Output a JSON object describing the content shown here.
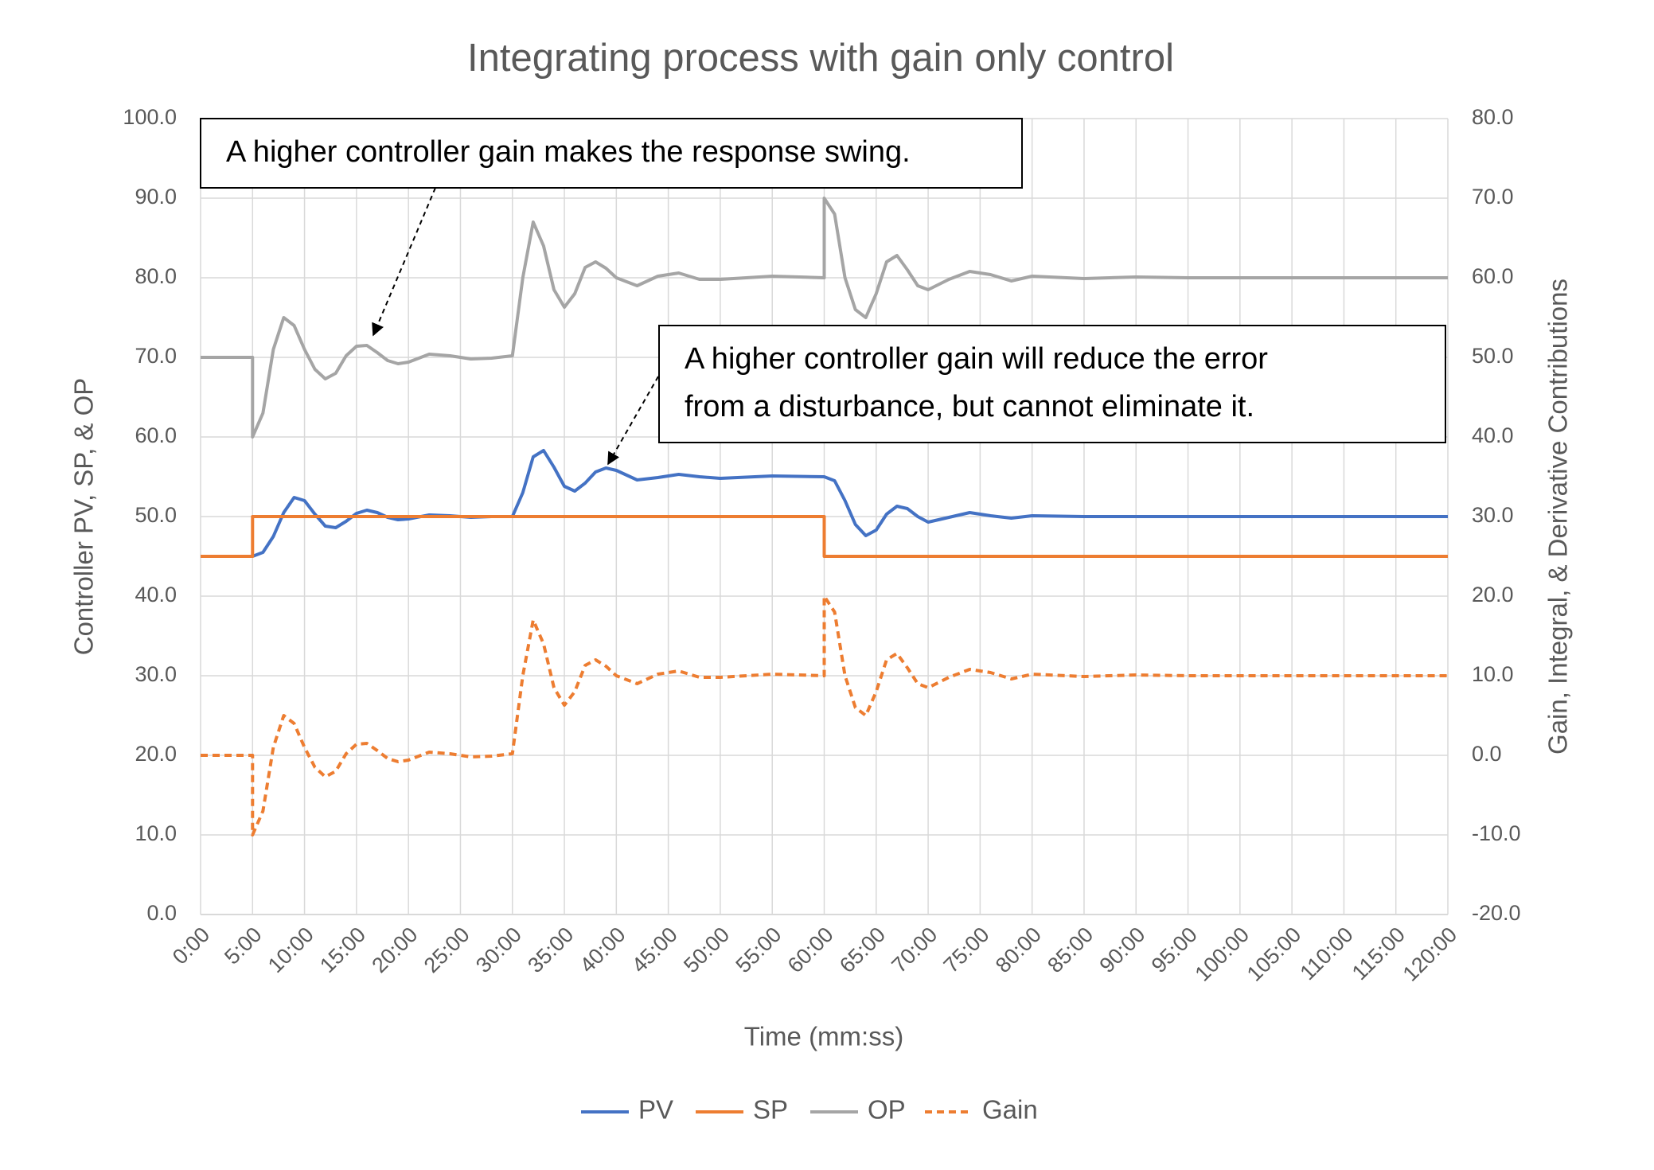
{
  "chart_data": {
    "type": "line",
    "title": "Integrating process with gain only control",
    "x_label": "Time (mm:ss)",
    "y_label": "Controller PV, SP, & OP",
    "y2_label": "Gain, Integral, & Derivative Contributions",
    "grid": true,
    "legend": "bottom",
    "xlim": [
      0,
      120
    ],
    "xticks": [
      {
        "value": 0,
        "label": "0:00"
      },
      {
        "value": 5,
        "label": "5:00"
      },
      {
        "value": 10,
        "label": "10:00"
      },
      {
        "value": 15,
        "label": "15:00"
      },
      {
        "value": 20,
        "label": "20:00"
      },
      {
        "value": 25,
        "label": "25:00"
      },
      {
        "value": 30,
        "label": "30:00"
      },
      {
        "value": 35,
        "label": "35:00"
      },
      {
        "value": 40,
        "label": "40:00"
      },
      {
        "value": 45,
        "label": "45:00"
      },
      {
        "value": 50,
        "label": "50:00"
      },
      {
        "value": 55,
        "label": "55:00"
      },
      {
        "value": 60,
        "label": "60:00"
      },
      {
        "value": 65,
        "label": "65:00"
      },
      {
        "value": 70,
        "label": "70:00"
      },
      {
        "value": 75,
        "label": "75:00"
      },
      {
        "value": 80,
        "label": "80:00"
      },
      {
        "value": 85,
        "label": "85:00"
      },
      {
        "value": 90,
        "label": "90:00"
      },
      {
        "value": 95,
        "label": "95:00"
      },
      {
        "value": 100,
        "label": "100:00"
      },
      {
        "value": 105,
        "label": "105:00"
      },
      {
        "value": 110,
        "label": "110:00"
      },
      {
        "value": 115,
        "label": "115:00"
      },
      {
        "value": 120,
        "label": "120:00"
      }
    ],
    "ylim": [
      0,
      100
    ],
    "yticks": [
      {
        "value": 0,
        "label": "0.0"
      },
      {
        "value": 10,
        "label": "10.0"
      },
      {
        "value": 20,
        "label": "20.0"
      },
      {
        "value": 30,
        "label": "30.0"
      },
      {
        "value": 40,
        "label": "40.0"
      },
      {
        "value": 50,
        "label": "50.0"
      },
      {
        "value": 60,
        "label": "60.0"
      },
      {
        "value": 70,
        "label": "70.0"
      },
      {
        "value": 80,
        "label": "80.0"
      },
      {
        "value": 90,
        "label": "90.0"
      },
      {
        "value": 100,
        "label": "100.0"
      }
    ],
    "y2lim": [
      -20,
      80
    ],
    "y2ticks": [
      {
        "value": -20,
        "label": "-20.0"
      },
      {
        "value": -10,
        "label": "-10.0"
      },
      {
        "value": 0,
        "label": "0.0"
      },
      {
        "value": 10,
        "label": "10.0"
      },
      {
        "value": 20,
        "label": "20.0"
      },
      {
        "value": 30,
        "label": "30.0"
      },
      {
        "value": 40,
        "label": "40.0"
      },
      {
        "value": 50,
        "label": "50.0"
      },
      {
        "value": 60,
        "label": "60.0"
      },
      {
        "value": 70,
        "label": "70.0"
      },
      {
        "value": 80,
        "label": "80.0"
      }
    ],
    "x": [
      0,
      5,
      5,
      6,
      7,
      8,
      9,
      10,
      11,
      12,
      13,
      14,
      15,
      16,
      17,
      18,
      19,
      20,
      22,
      24,
      26,
      28,
      30,
      31,
      32,
      33,
      34,
      35,
      36,
      37,
      38,
      39,
      40,
      42,
      44,
      46,
      48,
      50,
      55,
      60,
      60,
      61,
      62,
      63,
      64,
      65,
      66,
      67,
      68,
      69,
      70,
      72,
      74,
      76,
      78,
      80,
      85,
      90,
      95,
      100,
      105,
      110,
      115,
      120
    ],
    "series": [
      {
        "name": "PV",
        "color": "#4472c4",
        "line_style": "solid",
        "values": [
          45,
          45,
          45,
          45.5,
          47.5,
          50.5,
          52.4,
          52,
          50.3,
          48.8,
          48.6,
          49.4,
          50.4,
          50.8,
          50.5,
          49.9,
          49.6,
          49.7,
          50.2,
          50.1,
          49.9,
          50,
          50,
          53,
          57.5,
          58.3,
          56.2,
          53.8,
          53.2,
          54.2,
          55.6,
          56.1,
          55.8,
          54.6,
          54.9,
          55.3,
          55,
          54.8,
          55.1,
          55,
          55,
          54.5,
          52,
          49,
          47.6,
          48.3,
          50.3,
          51.3,
          51,
          50,
          49.3,
          49.9,
          50.5,
          50.1,
          49.8,
          50.1,
          50,
          50,
          50,
          50,
          50,
          50,
          50,
          50
        ]
      },
      {
        "name": "SP",
        "color": "#ed7d31",
        "line_style": "solid",
        "values": [
          45,
          45,
          50,
          50,
          50,
          50,
          50,
          50,
          50,
          50,
          50,
          50,
          50,
          50,
          50,
          50,
          50,
          50,
          50,
          50,
          50,
          50,
          50,
          50,
          50,
          50,
          50,
          50,
          50,
          50,
          50,
          50,
          50,
          50,
          50,
          50,
          50,
          50,
          50,
          50,
          45,
          45,
          45,
          45,
          45,
          45,
          45,
          45,
          45,
          45,
          45,
          45,
          45,
          45,
          45,
          45,
          45,
          45,
          45,
          45,
          45,
          45,
          45,
          45
        ]
      },
      {
        "name": "OP",
        "color": "#a5a5a5",
        "line_style": "solid",
        "values": [
          70,
          70,
          60,
          63,
          71,
          75,
          74,
          71,
          68.5,
          67.3,
          68,
          70.2,
          71.4,
          71.5,
          70.6,
          69.6,
          69.2,
          69.4,
          70.4,
          70.2,
          69.8,
          69.9,
          70.2,
          80,
          87,
          84,
          78.5,
          76.3,
          78,
          81.3,
          82,
          81.2,
          80,
          79,
          80.2,
          80.6,
          79.8,
          79.8,
          80.2,
          80,
          90,
          88,
          80,
          76,
          75,
          78,
          82,
          82.8,
          81,
          79,
          78.5,
          79.8,
          80.8,
          80.4,
          79.6,
          80.2,
          79.9,
          80.1,
          80,
          80,
          80,
          80,
          80,
          80
        ]
      },
      {
        "name": "Gain",
        "color": "#ed7d31",
        "line_style": "dashed",
        "axis": "y2",
        "values": [
          0,
          0,
          -10,
          -7,
          1,
          5,
          4,
          1,
          -1.5,
          -2.7,
          -2,
          0.2,
          1.4,
          1.5,
          0.6,
          -0.4,
          -0.8,
          -0.6,
          0.4,
          0.2,
          -0.2,
          -0.1,
          0.2,
          10,
          17,
          14,
          8.5,
          6.3,
          8,
          11.3,
          12,
          11.2,
          10,
          9,
          10.2,
          10.6,
          9.8,
          9.8,
          10.2,
          10,
          20,
          18,
          10,
          6,
          5,
          8,
          12,
          12.8,
          11,
          9,
          8.5,
          9.8,
          10.8,
          10.4,
          9.6,
          10.2,
          9.9,
          10.1,
          10,
          10,
          10,
          10,
          10,
          10
        ]
      }
    ],
    "annotations": [
      {
        "lines": [
          "A higher controller gain makes the response swing."
        ]
      },
      {
        "lines": [
          "A higher controller gain will reduce the error",
          "from a disturbance, but cannot eliminate it."
        ]
      }
    ]
  }
}
